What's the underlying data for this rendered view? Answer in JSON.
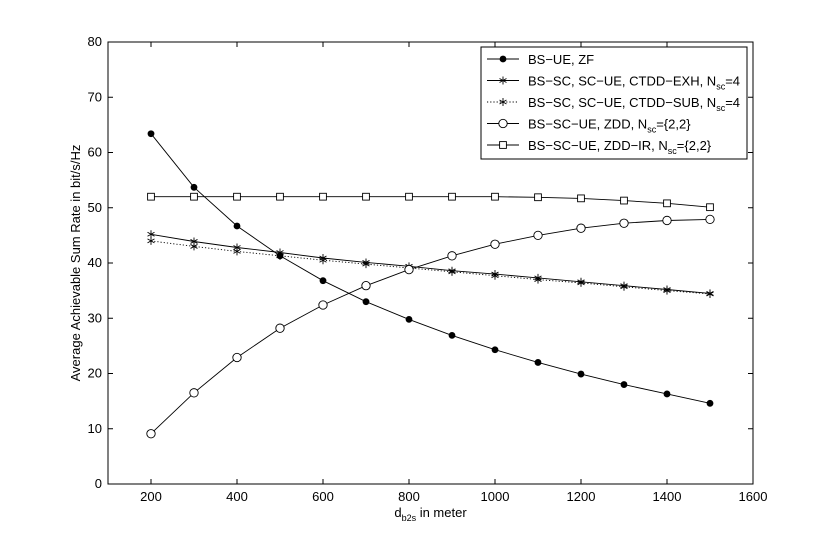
{
  "chart_data": {
    "type": "line",
    "xlabel": {
      "main": "d",
      "sub": "b2s",
      "rest": " in meter"
    },
    "ylabel": "Average Achievable Sum Rate in bit/s/Hz",
    "xlim": [
      100,
      1600
    ],
    "ylim": [
      0,
      80
    ],
    "xticks": [
      200,
      400,
      600,
      800,
      1000,
      1200,
      1400,
      1600
    ],
    "yticks": [
      0,
      10,
      20,
      30,
      40,
      50,
      60,
      70,
      80
    ],
    "grid": false,
    "legend_position": "top-right",
    "series": [
      {
        "name": "BS−UE, ZF",
        "legend": [
          {
            "t": "BS−UE, ZF"
          }
        ],
        "marker": "dot",
        "line": "solid",
        "x": [
          200,
          300,
          400,
          500,
          600,
          700,
          800,
          900,
          1000,
          1100,
          1200,
          1300,
          1400,
          1500
        ],
        "y": [
          63.4,
          53.7,
          46.7,
          41.3,
          36.8,
          33.0,
          29.8,
          26.9,
          24.3,
          22.0,
          19.9,
          18.0,
          16.3,
          14.6
        ]
      },
      {
        "name": "BS−SC, SC−UE, CTDD−EXH, Nsc=4",
        "legend": [
          {
            "t": "BS−SC, SC−UE, CTDD−EXH, N"
          },
          {
            "t": "sc",
            "sub": true
          },
          {
            "t": "=4"
          }
        ],
        "marker": "star",
        "line": "solid",
        "x": [
          200,
          300,
          400,
          500,
          600,
          700,
          800,
          900,
          1000,
          1100,
          1200,
          1300,
          1400,
          1500
        ],
        "y": [
          45.2,
          43.9,
          42.8,
          41.9,
          40.9,
          40.1,
          39.4,
          38.6,
          38.0,
          37.3,
          36.6,
          35.9,
          35.2,
          34.5
        ]
      },
      {
        "name": "BS−SC, SC−UE, CTDD−SUB, Nsc=4",
        "legend": [
          {
            "t": "BS−SC, SC−UE, CTDD−SUB, N"
          },
          {
            "t": "sc",
            "sub": true
          },
          {
            "t": "=4"
          }
        ],
        "marker": "star",
        "line": "dotted",
        "x": [
          200,
          300,
          400,
          500,
          600,
          700,
          800,
          900,
          1000,
          1100,
          1200,
          1300,
          1400,
          1500
        ],
        "y": [
          44.0,
          43.0,
          42.1,
          41.3,
          40.5,
          39.8,
          39.1,
          38.4,
          37.7,
          37.0,
          36.4,
          35.7,
          35.0,
          34.4
        ]
      },
      {
        "name": "BS−SC−UE, ZDD, Nsc={2,2}",
        "legend": [
          {
            "t": "BS−SC−UE, ZDD, N"
          },
          {
            "t": "sc",
            "sub": true
          },
          {
            "t": "={2,2}"
          }
        ],
        "marker": "circle",
        "line": "solid",
        "x": [
          200,
          300,
          400,
          500,
          600,
          700,
          800,
          900,
          1000,
          1100,
          1200,
          1300,
          1400,
          1500
        ],
        "y": [
          9.1,
          16.5,
          22.9,
          28.2,
          32.4,
          35.9,
          38.8,
          41.3,
          43.4,
          45.0,
          46.3,
          47.2,
          47.7,
          47.9
        ]
      },
      {
        "name": "BS−SC−UE, ZDD−IR, Nsc={2,2}",
        "legend": [
          {
            "t": "BS−SC−UE, ZDD−IR, N"
          },
          {
            "t": "sc",
            "sub": true
          },
          {
            "t": "={2,2}"
          }
        ],
        "marker": "square",
        "line": "solid",
        "x": [
          200,
          300,
          400,
          500,
          600,
          700,
          800,
          900,
          1000,
          1100,
          1200,
          1300,
          1400,
          1500
        ],
        "y": [
          52.0,
          52.0,
          52.0,
          52.0,
          52.0,
          52.0,
          52.0,
          52.0,
          52.0,
          51.9,
          51.7,
          51.3,
          50.8,
          50.1
        ]
      }
    ]
  }
}
